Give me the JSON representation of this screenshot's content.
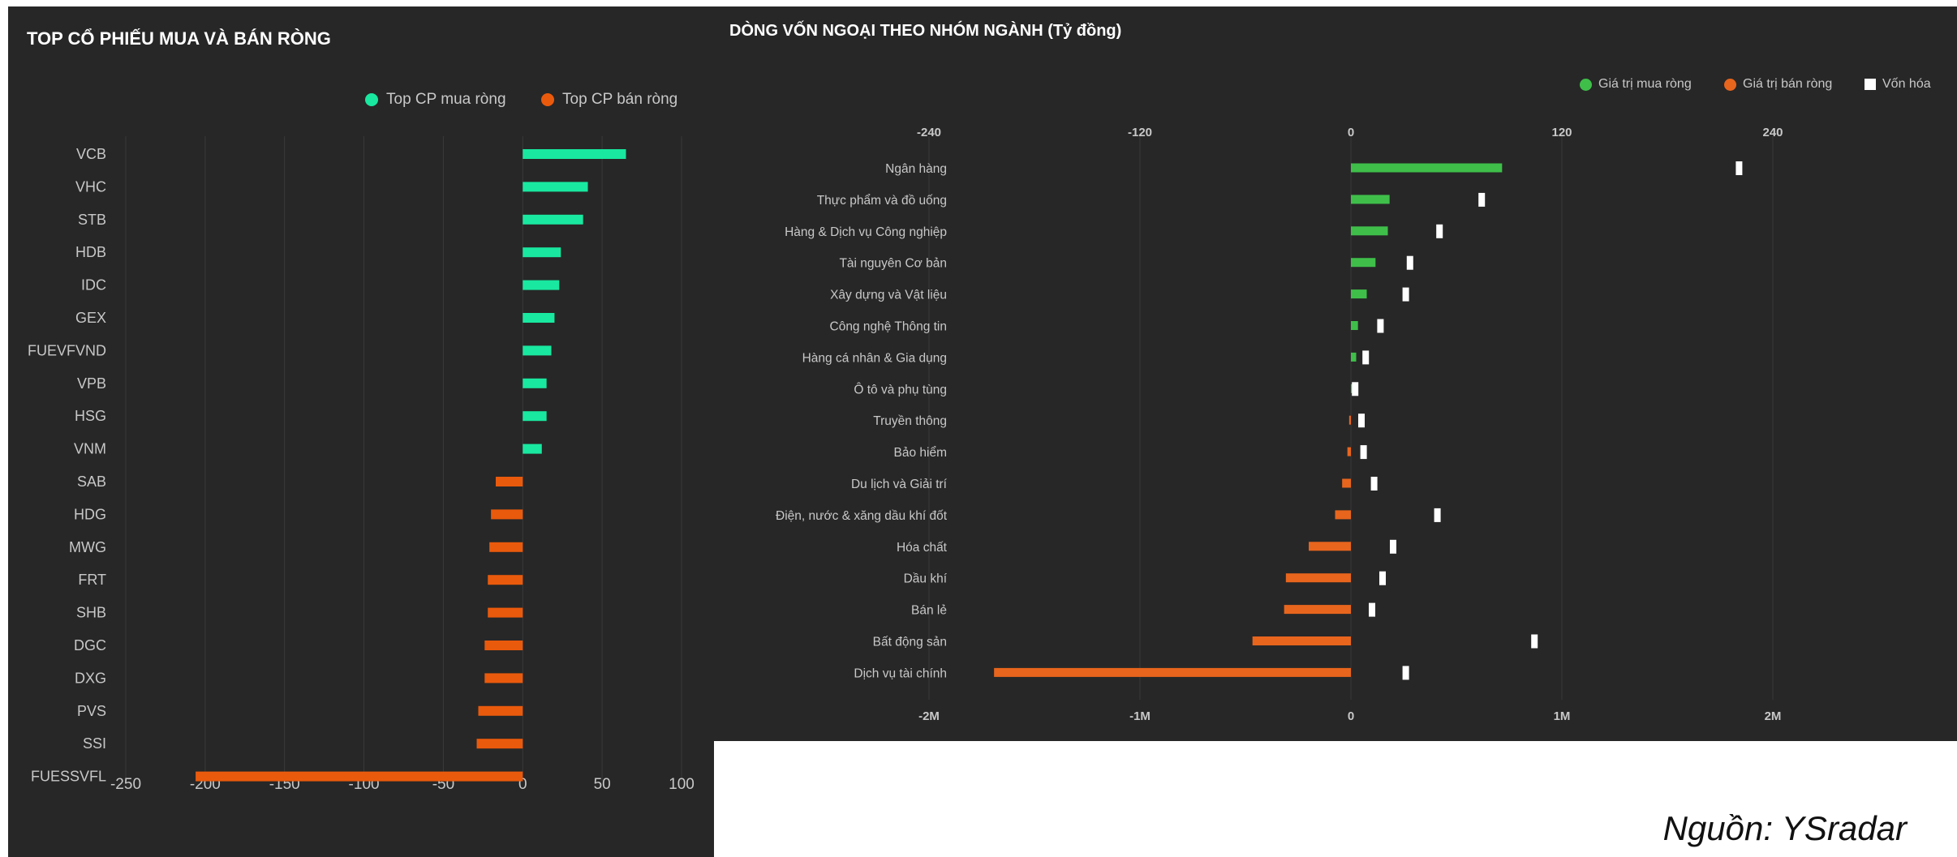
{
  "left": {
    "title": "TOP CỔ PHIẾU MUA VÀ BÁN RÒNG",
    "legend": [
      {
        "label": "Top CP mua ròng",
        "color": "#19e8a0"
      },
      {
        "label": "Top CP bán ròng",
        "color": "#ea5a0c"
      }
    ]
  },
  "right": {
    "title": "DÒNG VỐN NGOẠI THEO NHÓM NGÀNH (Tỷ đồng)",
    "legend": [
      {
        "label": "Giá trị mua ròng",
        "color": "#3fbf4a"
      },
      {
        "label": "Giá trị bán ròng",
        "color": "#e8651d"
      },
      {
        "label": "Vốn hóa",
        "color": "#ffffff"
      }
    ]
  },
  "source": "Nguồn: YSradar",
  "chart_data": [
    {
      "type": "bar",
      "orientation": "horizontal",
      "title": "TOP CỔ PHIẾU MUA VÀ BÁN RÒNG",
      "categories": [
        "VCB",
        "VHC",
        "STB",
        "HDB",
        "IDC",
        "GEX",
        "FUEVFVND",
        "VPB",
        "HSG",
        "VNM",
        "SAB",
        "HDG",
        "MWG",
        "FRT",
        "SHB",
        "DGC",
        "DXG",
        "PVS",
        "SSI",
        "FUESSVFL"
      ],
      "series": [
        {
          "name": "Top CP mua ròng",
          "color": "#19e8a0",
          "values": [
            65,
            41,
            38,
            24,
            23,
            20,
            18,
            15,
            15,
            12,
            null,
            null,
            null,
            null,
            null,
            null,
            null,
            null,
            null,
            null
          ]
        },
        {
          "name": "Top CP bán ròng",
          "color": "#ea5a0c",
          "values": [
            null,
            null,
            null,
            null,
            null,
            null,
            null,
            null,
            null,
            null,
            -17,
            -20,
            -21,
            -22,
            -22,
            -24,
            -24,
            -28,
            -29,
            -206
          ]
        }
      ],
      "xlim": [
        -250,
        100
      ],
      "xticks": [
        "-250",
        "-200",
        "-150",
        "-100",
        "-50",
        "0",
        "50",
        "100"
      ],
      "legend_position": "top-right",
      "grid": true
    },
    {
      "type": "bar",
      "orientation": "horizontal",
      "title": "DÒNG VỐN NGOẠI THEO NHÓM NGÀNH (Tỷ đồng)",
      "categories": [
        "Ngân hàng",
        "Thực phẩm và đồ uống",
        "Hàng & Dịch vụ Công nghiệp",
        "Tài nguyên Cơ bản",
        "Xây dựng và Vật liệu",
        "Công nghệ Thông tin",
        "Hàng cá nhân & Gia dụng",
        "Ô tô và phụ tùng",
        "Truyền thông",
        "Bảo hiểm",
        "Du lịch và Giải trí",
        "Điện, nước & xăng dầu khí đốt",
        "Hóa chất",
        "Dầu khí",
        "Bán lẻ",
        "Bất động sản",
        "Dịch vụ tài chính"
      ],
      "series": [
        {
          "name": "Giá trị mua ròng",
          "color": "#3fbf4a",
          "values": [
            86,
            22,
            21,
            14,
            9,
            4,
            3,
            0.6,
            null,
            null,
            null,
            null,
            null,
            null,
            null,
            null,
            null
          ]
        },
        {
          "name": "Giá trị bán ròng",
          "color": "#e8651d",
          "values": [
            null,
            null,
            null,
            null,
            null,
            null,
            null,
            null,
            -1,
            -2,
            -5,
            -9,
            -24,
            -37,
            -38,
            -56,
            -203
          ]
        },
        {
          "name": "Vốn hóa",
          "color": "#ffffff",
          "axis": "bottom",
          "values": [
            1840000,
            620000,
            420000,
            280000,
            260000,
            140000,
            70000,
            20000,
            50000,
            60000,
            110000,
            410000,
            200000,
            150000,
            100000,
            870000,
            260000
          ]
        }
      ],
      "top_axis": {
        "ticks": [
          "-240",
          "-120",
          "0",
          "120",
          "240"
        ],
        "lim": [
          -240,
          240
        ]
      },
      "bottom_axis": {
        "ticks": [
          "-2M",
          "-1M",
          "0",
          "1M",
          "2M"
        ],
        "lim": [
          -2000000,
          2000000
        ]
      },
      "legend_position": "top-right",
      "grid": true
    }
  ]
}
